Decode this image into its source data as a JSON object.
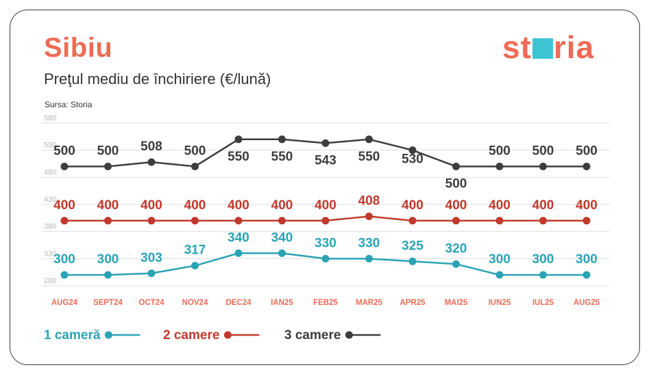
{
  "header": {
    "city": "Sibiu",
    "subtitle": "Preţul mediu de închiriere (€/lună)",
    "source": "Sursa: Storia",
    "logo": "storia"
  },
  "colors": {
    "accent": "#ef6a55",
    "logo_square": "#3cc4d3",
    "series_1": "#2aa3b5",
    "series_2": "#c0392b",
    "series_3": "#3d3d3d",
    "grid": "#dddddd",
    "tick": "#b5b5b5"
  },
  "chart_data": {
    "type": "line",
    "title": "Preţul mediu de închiriere (€/lună)",
    "xlabel": "",
    "ylabel": "",
    "categories": [
      "AUG24",
      "SEPT24",
      "OCT24",
      "NOV24",
      "DEC24",
      "IAN25",
      "FEB25",
      "MAR25",
      "APR25",
      "MAI25",
      "IUN25",
      "IUL25",
      "AUG25"
    ],
    "y_ticks": [
      280,
      330,
      380,
      430,
      480,
      530,
      580
    ],
    "ylim": [
      280,
      580
    ],
    "grid": true,
    "legend_position": "bottom-left",
    "series": [
      {
        "name": "1 cameră",
        "color": "#2aa3b5",
        "values": [
          300,
          300,
          303,
          317,
          340,
          340,
          330,
          330,
          325,
          320,
          300,
          300,
          300
        ]
      },
      {
        "name": "2 camere",
        "color": "#c0392b",
        "values": [
          400,
          400,
          400,
          400,
          400,
          400,
          400,
          408,
          400,
          400,
          400,
          400,
          400
        ]
      },
      {
        "name": "3 camere",
        "color": "#3d3d3d",
        "values": [
          500,
          500,
          508,
          500,
          550,
          550,
          543,
          550,
          530,
          500,
          500,
          500,
          500
        ]
      }
    ]
  }
}
